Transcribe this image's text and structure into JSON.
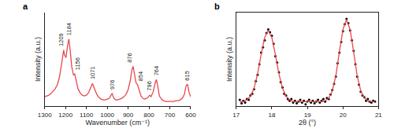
{
  "chart_data": [
    {
      "type": "line",
      "title": "a",
      "x_label": "Wavenumber (cm⁻¹)",
      "y_label": "Intensity (a.u.)",
      "color": "#e8474d",
      "x": [
        1300,
        1290,
        1280,
        1270,
        1260,
        1250,
        1240,
        1230,
        1220,
        1212,
        1209,
        1205,
        1198,
        1190,
        1184,
        1178,
        1170,
        1162,
        1156,
        1150,
        1140,
        1130,
        1120,
        1110,
        1100,
        1090,
        1080,
        1071,
        1062,
        1050,
        1040,
        1030,
        1020,
        1010,
        1000,
        990,
        980,
        976,
        970,
        960,
        950,
        940,
        930,
        920,
        910,
        900,
        890,
        882,
        876,
        870,
        862,
        854,
        846,
        838,
        830,
        820,
        810,
        800,
        796,
        790,
        780,
        770,
        764,
        758,
        750,
        740,
        730,
        720,
        710,
        700,
        690,
        680,
        670,
        660,
        650,
        640,
        630,
        622,
        615,
        608,
        600
      ],
      "values": [
        0.12,
        0.13,
        0.14,
        0.16,
        0.19,
        0.22,
        0.27,
        0.36,
        0.52,
        0.7,
        0.72,
        0.66,
        0.62,
        0.78,
        0.86,
        0.72,
        0.5,
        0.4,
        0.41,
        0.34,
        0.22,
        0.17,
        0.14,
        0.13,
        0.14,
        0.17,
        0.24,
        0.29,
        0.23,
        0.15,
        0.11,
        0.09,
        0.08,
        0.08,
        0.09,
        0.1,
        0.15,
        0.16,
        0.11,
        0.08,
        0.08,
        0.09,
        0.1,
        0.12,
        0.15,
        0.21,
        0.32,
        0.46,
        0.51,
        0.42,
        0.3,
        0.27,
        0.2,
        0.13,
        0.1,
        0.09,
        0.1,
        0.13,
        0.14,
        0.12,
        0.18,
        0.3,
        0.34,
        0.26,
        0.13,
        0.09,
        0.07,
        0.06,
        0.06,
        0.06,
        0.06,
        0.06,
        0.07,
        0.07,
        0.08,
        0.1,
        0.15,
        0.26,
        0.28,
        0.18,
        0.12
      ],
      "xlim": [
        1300,
        600
      ],
      "xticks": [
        1300,
        1200,
        1100,
        1000,
        900,
        800,
        700,
        600
      ],
      "ylim": [
        0,
        1.2
      ],
      "grid": false,
      "tick_labels": "x",
      "annotations": [
        {
          "x": 1209,
          "y": 0.72,
          "text": "1209"
        },
        {
          "x": 1184,
          "y": 0.86,
          "text": "1184"
        },
        {
          "x": 1156,
          "y": 0.41,
          "text": "1156"
        },
        {
          "x": 1071,
          "y": 0.29,
          "text": "1071"
        },
        {
          "x": 976,
          "y": 0.16,
          "text": "976"
        },
        {
          "x": 876,
          "y": 0.51,
          "text": "876"
        },
        {
          "x": 854,
          "y": 0.27,
          "text": "854"
        },
        {
          "x": 796,
          "y": 0.14,
          "text": "796"
        },
        {
          "x": 764,
          "y": 0.34,
          "text": "764"
        },
        {
          "x": 615,
          "y": 0.28,
          "text": "615"
        }
      ]
    },
    {
      "type": "scatter",
      "title": "b",
      "x_label": "2θ (°)",
      "y_label": "Intensity (a.u.)",
      "xlim": [
        17,
        21
      ],
      "xticks": [
        17,
        18,
        19,
        20,
        21
      ],
      "ylim": [
        0,
        1.05
      ],
      "grid": false,
      "tick_labels": "x",
      "series": [
        {
          "type": "scatter",
          "marker": "circle",
          "color": "#000000",
          "x": [
            17.1,
            17.15,
            17.2,
            17.25,
            17.3,
            17.35,
            17.4,
            17.45,
            17.5,
            17.55,
            17.6,
            17.65,
            17.7,
            17.75,
            17.8,
            17.85,
            17.9,
            17.95,
            18.0,
            18.05,
            18.1,
            18.15,
            18.2,
            18.25,
            18.3,
            18.35,
            18.4,
            18.45,
            18.5,
            18.55,
            18.6,
            18.65,
            18.7,
            18.75,
            18.8,
            18.85,
            18.9,
            18.95,
            19.0,
            19.05,
            19.1,
            19.15,
            19.2,
            19.25,
            19.3,
            19.35,
            19.4,
            19.45,
            19.5,
            19.55,
            19.6,
            19.65,
            19.7,
            19.75,
            19.8,
            19.85,
            19.9,
            19.95,
            20.0,
            20.05,
            20.1,
            20.15,
            20.2,
            20.25,
            20.3,
            20.35,
            20.4,
            20.45,
            20.5,
            20.55,
            20.6,
            20.65,
            20.7,
            20.75,
            20.8,
            20.85,
            20.9
          ],
          "values": [
            0.07,
            0.03,
            0.06,
            0.04,
            0.08,
            0.07,
            0.12,
            0.14,
            0.19,
            0.28,
            0.35,
            0.47,
            0.6,
            0.66,
            0.74,
            0.82,
            0.86,
            0.83,
            0.79,
            0.7,
            0.56,
            0.49,
            0.38,
            0.27,
            0.21,
            0.14,
            0.12,
            0.08,
            0.06,
            0.08,
            0.04,
            0.06,
            0.03,
            0.05,
            0.07,
            0.04,
            0.06,
            0.02,
            0.05,
            0.07,
            0.04,
            0.06,
            0.03,
            0.05,
            0.07,
            0.04,
            0.06,
            0.08,
            0.05,
            0.09,
            0.08,
            0.13,
            0.18,
            0.25,
            0.33,
            0.48,
            0.6,
            0.72,
            0.84,
            0.92,
            0.98,
            0.93,
            0.85,
            0.74,
            0.62,
            0.47,
            0.33,
            0.24,
            0.16,
            0.12,
            0.1,
            0.06,
            0.08,
            0.05,
            0.04,
            0.06,
            0.05
          ]
        },
        {
          "type": "line",
          "color": "#e8474d",
          "x": [
            17.1,
            17.2,
            17.3,
            17.4,
            17.5,
            17.6,
            17.7,
            17.8,
            17.9,
            18.0,
            18.1,
            18.2,
            18.3,
            18.4,
            18.5,
            18.6,
            18.7,
            18.8,
            18.9,
            19.0,
            19.1,
            19.2,
            19.3,
            19.4,
            19.5,
            19.6,
            19.7,
            19.8,
            19.9,
            20.0,
            20.1,
            20.2,
            20.3,
            20.4,
            20.5,
            20.6,
            20.7,
            20.8,
            20.9
          ],
          "values": [
            0.05,
            0.05,
            0.07,
            0.11,
            0.2,
            0.36,
            0.58,
            0.77,
            0.85,
            0.77,
            0.58,
            0.36,
            0.2,
            0.11,
            0.07,
            0.05,
            0.05,
            0.05,
            0.05,
            0.05,
            0.05,
            0.05,
            0.05,
            0.05,
            0.06,
            0.09,
            0.17,
            0.34,
            0.61,
            0.86,
            0.97,
            0.86,
            0.61,
            0.34,
            0.17,
            0.09,
            0.06,
            0.05,
            0.05
          ]
        }
      ]
    }
  ]
}
